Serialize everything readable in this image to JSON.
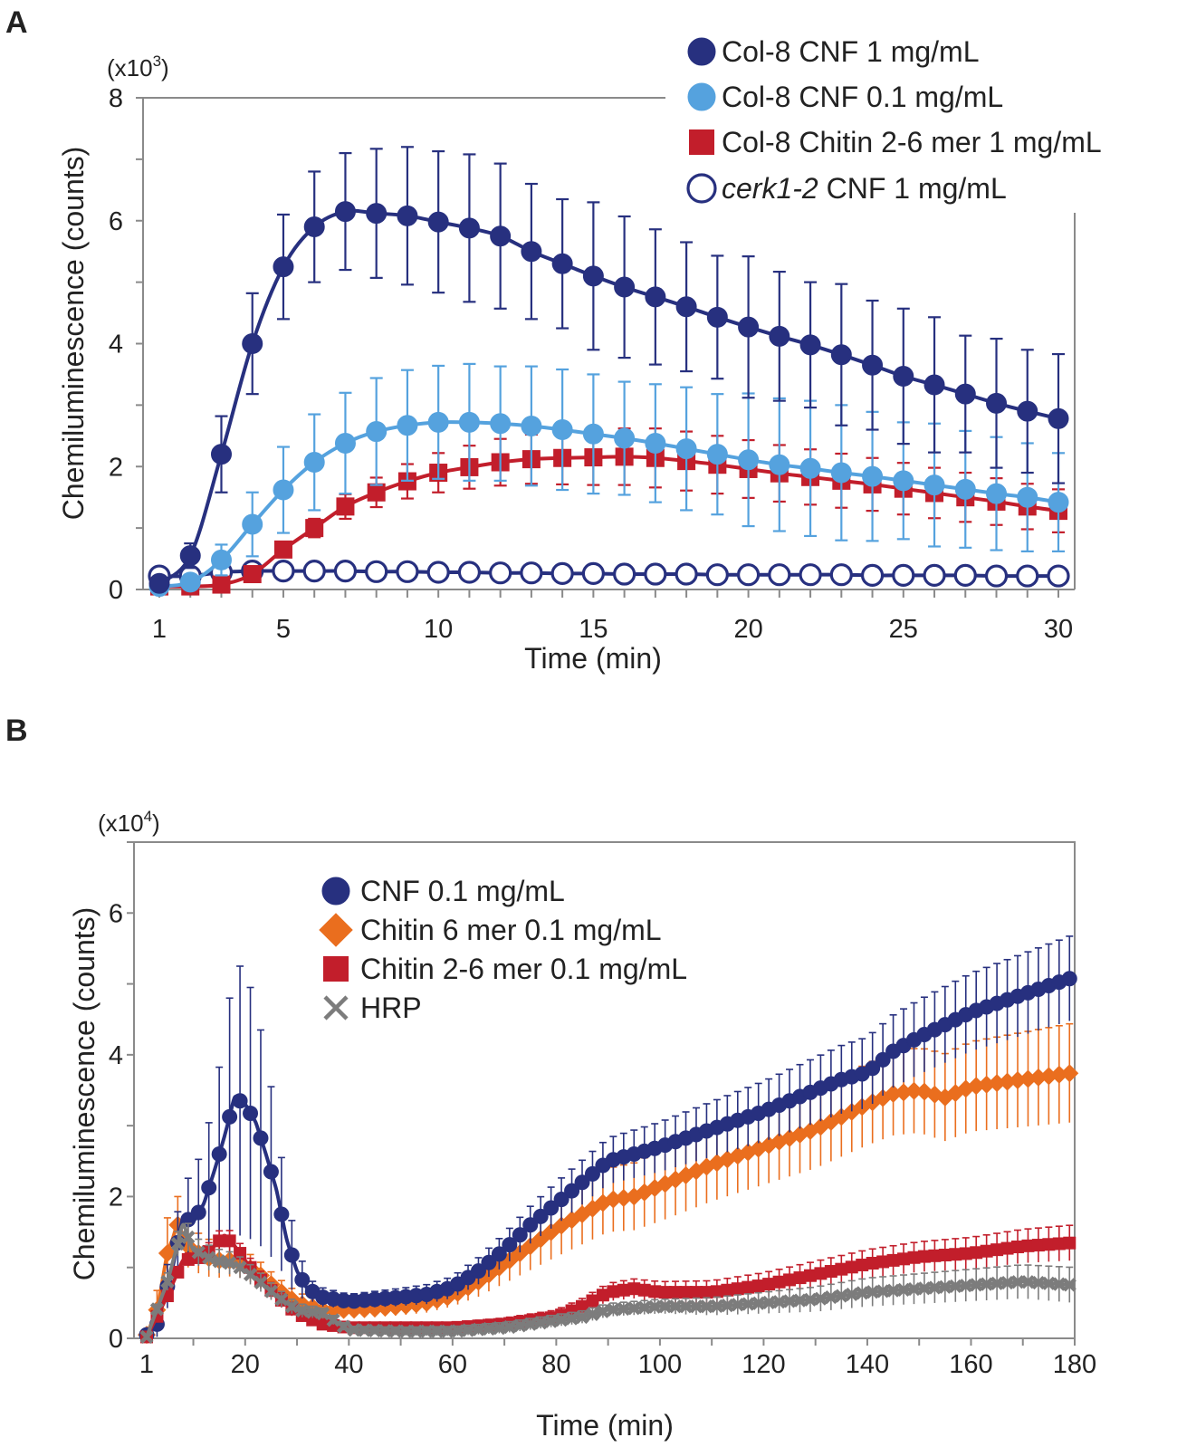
{
  "chart_data": [
    {
      "panel": "A",
      "type": "line",
      "xlabel": "Time (min)",
      "ylabel": "Chemiluminescence (counts)",
      "y_multiplier": {
        "base": "(x10",
        "exp": "3",
        "close": ")"
      },
      "xlim": [
        1,
        30
      ],
      "ylim": [
        0,
        8
      ],
      "xticks": [
        1,
        5,
        10,
        15,
        20,
        25,
        30
      ],
      "yticks": [
        0,
        2,
        4,
        6,
        8
      ],
      "legend_position": "top-right",
      "x": [
        1,
        2,
        3,
        4,
        5,
        6,
        7,
        8,
        9,
        10,
        11,
        12,
        13,
        14,
        15,
        16,
        17,
        18,
        19,
        20,
        21,
        22,
        23,
        24,
        25,
        26,
        27,
        28,
        29,
        30
      ],
      "series": [
        {
          "name": "Col-8 CNF 1 mg/mL",
          "label_parts": [
            {
              "text": "Col-8 CNF 1 mg/mL",
              "italic": false
            }
          ],
          "color": "#27307f",
          "marker": "circle",
          "filled": true,
          "values": [
            0.1,
            0.55,
            2.2,
            4.0,
            5.25,
            5.9,
            6.15,
            6.12,
            6.08,
            5.98,
            5.88,
            5.75,
            5.5,
            5.3,
            5.1,
            4.92,
            4.76,
            4.6,
            4.43,
            4.27,
            4.12,
            3.98,
            3.82,
            3.65,
            3.47,
            3.33,
            3.18,
            3.03,
            2.9,
            2.78
          ],
          "errors": [
            0.05,
            0.2,
            0.62,
            0.82,
            0.85,
            0.9,
            0.95,
            1.05,
            1.12,
            1.15,
            1.2,
            1.18,
            1.1,
            1.05,
            1.2,
            1.15,
            1.1,
            1.05,
            1.0,
            1.15,
            1.05,
            1.02,
            1.15,
            1.05,
            1.1,
            1.1,
            0.95,
            1.05,
            1.0,
            1.05
          ]
        },
        {
          "name": "Col-8 CNF 0.1 mg/mL",
          "label_parts": [
            {
              "text": "Col-8 CNF 0.1 mg/mL",
              "italic": false
            }
          ],
          "color": "#55a2de",
          "marker": "circle",
          "filled": true,
          "values": [
            0.05,
            0.12,
            0.48,
            1.06,
            1.62,
            2.07,
            2.38,
            2.57,
            2.67,
            2.72,
            2.72,
            2.7,
            2.66,
            2.6,
            2.53,
            2.46,
            2.38,
            2.29,
            2.2,
            2.11,
            2.03,
            1.97,
            1.9,
            1.84,
            1.77,
            1.7,
            1.63,
            1.56,
            1.5,
            1.42
          ],
          "errors": [
            0.05,
            0.1,
            0.25,
            0.52,
            0.7,
            0.78,
            0.82,
            0.87,
            0.9,
            0.92,
            0.95,
            0.93,
            0.97,
            0.98,
            0.97,
            0.92,
            0.96,
            1.0,
            0.98,
            1.08,
            1.08,
            1.1,
            1.1,
            1.05,
            0.95,
            1.0,
            0.95,
            0.92,
            0.88,
            0.8
          ]
        },
        {
          "name": "Col-8 Chitin 2-6 mer 1 mg/mL",
          "label_parts": [
            {
              "text": "Col-8 Chitin 2-6 mer 1 mg/mL",
              "italic": false
            }
          ],
          "color": "#c21e2b",
          "marker": "square",
          "filled": true,
          "values": [
            0.05,
            0.05,
            0.08,
            0.25,
            0.65,
            1.0,
            1.35,
            1.58,
            1.76,
            1.9,
            1.99,
            2.07,
            2.12,
            2.14,
            2.15,
            2.16,
            2.14,
            2.09,
            2.03,
            1.96,
            1.89,
            1.83,
            1.77,
            1.71,
            1.64,
            1.57,
            1.5,
            1.43,
            1.35,
            1.28
          ],
          "errors": [
            0.03,
            0.04,
            0.05,
            0.08,
            0.1,
            0.15,
            0.2,
            0.24,
            0.28,
            0.32,
            0.35,
            0.38,
            0.4,
            0.43,
            0.45,
            0.46,
            0.48,
            0.48,
            0.47,
            0.47,
            0.46,
            0.45,
            0.44,
            0.43,
            0.42,
            0.41,
            0.4,
            0.38,
            0.37,
            0.35
          ]
        },
        {
          "name": "cerk1-2 CNF 1 mg/mL",
          "label_parts": [
            {
              "text": "cerk1-2",
              "italic": true
            },
            {
              "text": " CNF 1 mg/mL",
              "italic": false
            }
          ],
          "color": "#27307f",
          "marker": "circle",
          "filled": false,
          "values": [
            0.22,
            0.22,
            0.28,
            0.3,
            0.3,
            0.3,
            0.3,
            0.29,
            0.29,
            0.28,
            0.28,
            0.27,
            0.27,
            0.26,
            0.26,
            0.25,
            0.25,
            0.25,
            0.24,
            0.24,
            0.24,
            0.24,
            0.24,
            0.23,
            0.23,
            0.23,
            0.23,
            0.22,
            0.22,
            0.22
          ],
          "errors": null
        }
      ]
    },
    {
      "panel": "B",
      "type": "line",
      "xlabel": "Time (min)",
      "ylabel": "Chemiluminescence (counts)",
      "y_multiplier": {
        "base": "(x10",
        "exp": "4",
        "close": ")"
      },
      "xlim": [
        1,
        180
      ],
      "ylim": [
        0,
        7
      ],
      "xticks": [
        1,
        20,
        40,
        60,
        80,
        100,
        120,
        140,
        160,
        180
      ],
      "yticks": [
        0,
        2,
        4,
        6
      ],
      "legend_position": "top-left",
      "series": [
        {
          "name": "CNF 0.1 mg/mL",
          "color": "#27307f",
          "marker": "circle",
          "knots": [
            [
              1,
              0.05
            ],
            [
              3,
              0.2
            ],
            [
              6,
              1.0
            ],
            [
              8,
              1.7
            ],
            [
              10,
              1.65
            ],
            [
              12,
              1.9
            ],
            [
              14,
              2.35
            ],
            [
              16,
              2.85
            ],
            [
              18,
              3.4
            ],
            [
              20,
              3.3
            ],
            [
              22,
              3.05
            ],
            [
              24,
              2.6
            ],
            [
              26,
              2.1
            ],
            [
              28,
              1.4
            ],
            [
              30,
              0.95
            ],
            [
              32,
              0.7
            ],
            [
              35,
              0.58
            ],
            [
              40,
              0.52
            ],
            [
              45,
              0.55
            ],
            [
              50,
              0.58
            ],
            [
              55,
              0.62
            ],
            [
              60,
              0.72
            ],
            [
              65,
              0.95
            ],
            [
              70,
              1.25
            ],
            [
              75,
              1.6
            ],
            [
              80,
              1.9
            ],
            [
              85,
              2.2
            ],
            [
              90,
              2.5
            ],
            [
              95,
              2.6
            ],
            [
              100,
              2.7
            ],
            [
              110,
              2.95
            ],
            [
              120,
              3.2
            ],
            [
              130,
              3.5
            ],
            [
              135,
              3.65
            ],
            [
              140,
              3.75
            ],
            [
              145,
              4.05
            ],
            [
              150,
              4.25
            ],
            [
              160,
              4.6
            ],
            [
              170,
              4.85
            ],
            [
              180,
              5.1
            ]
          ],
          "err_knots": [
            [
              1,
              0.05
            ],
            [
              8,
              0.5
            ],
            [
              14,
              1.0
            ],
            [
              18,
              1.9
            ],
            [
              20,
              1.9
            ],
            [
              24,
              1.4
            ],
            [
              28,
              0.6
            ],
            [
              32,
              0.15
            ],
            [
              40,
              0.1
            ],
            [
              60,
              0.15
            ],
            [
              80,
              0.3
            ],
            [
              100,
              0.35
            ],
            [
              140,
              0.5
            ],
            [
              160,
              0.55
            ],
            [
              180,
              0.6
            ]
          ]
        },
        {
          "name": "Chitin 6 mer 0.1 mg/mL",
          "color": "#ea6e1e",
          "marker": "diamond",
          "knots": [
            [
              1,
              0.05
            ],
            [
              3,
              0.4
            ],
            [
              5,
              1.2
            ],
            [
              7,
              1.6
            ],
            [
              9,
              1.3
            ],
            [
              12,
              1.15
            ],
            [
              15,
              1.1
            ],
            [
              18,
              1.1
            ],
            [
              22,
              0.95
            ],
            [
              26,
              0.7
            ],
            [
              30,
              0.5
            ],
            [
              35,
              0.4
            ],
            [
              40,
              0.4
            ],
            [
              45,
              0.42
            ],
            [
              50,
              0.45
            ],
            [
              55,
              0.5
            ],
            [
              60,
              0.6
            ],
            [
              65,
              0.8
            ],
            [
              70,
              1.05
            ],
            [
              75,
              1.3
            ],
            [
              80,
              1.55
            ],
            [
              85,
              1.75
            ],
            [
              90,
              1.95
            ],
            [
              95,
              2.0
            ],
            [
              100,
              2.15
            ],
            [
              110,
              2.45
            ],
            [
              120,
              2.7
            ],
            [
              130,
              2.95
            ],
            [
              140,
              3.3
            ],
            [
              145,
              3.45
            ],
            [
              150,
              3.5
            ],
            [
              155,
              3.4
            ],
            [
              160,
              3.55
            ],
            [
              170,
              3.65
            ],
            [
              180,
              3.75
            ]
          ],
          "err_knots": [
            [
              1,
              0.05
            ],
            [
              5,
              0.5
            ],
            [
              9,
              0.3
            ],
            [
              20,
              0.2
            ],
            [
              40,
              0.1
            ],
            [
              60,
              0.15
            ],
            [
              80,
              0.4
            ],
            [
              100,
              0.5
            ],
            [
              130,
              0.55
            ],
            [
              150,
              0.6
            ],
            [
              180,
              0.7
            ]
          ]
        },
        {
          "name": "Chitin 2-6 mer 0.1 mg/mL",
          "color": "#c21e2b",
          "marker": "square",
          "knots": [
            [
              1,
              0.02
            ],
            [
              5,
              0.6
            ],
            [
              8,
              1.1
            ],
            [
              12,
              1.15
            ],
            [
              16,
              1.45
            ],
            [
              18,
              1.3
            ],
            [
              22,
              0.9
            ],
            [
              26,
              0.6
            ],
            [
              30,
              0.35
            ],
            [
              35,
              0.2
            ],
            [
              40,
              0.15
            ],
            [
              50,
              0.15
            ],
            [
              60,
              0.15
            ],
            [
              70,
              0.2
            ],
            [
              80,
              0.3
            ],
            [
              85,
              0.45
            ],
            [
              90,
              0.65
            ],
            [
              95,
              0.7
            ],
            [
              100,
              0.65
            ],
            [
              110,
              0.65
            ],
            [
              120,
              0.75
            ],
            [
              130,
              0.9
            ],
            [
              140,
              1.05
            ],
            [
              150,
              1.15
            ],
            [
              160,
              1.2
            ],
            [
              170,
              1.3
            ],
            [
              180,
              1.35
            ]
          ],
          "err_knots": [
            [
              1,
              0.02
            ],
            [
              16,
              0.15
            ],
            [
              40,
              0.05
            ],
            [
              80,
              0.1
            ],
            [
              100,
              0.15
            ],
            [
              140,
              0.2
            ],
            [
              180,
              0.25
            ]
          ]
        },
        {
          "name": "HRP",
          "color": "#7c7c7c",
          "marker": "cross",
          "knots": [
            [
              1,
              0.02
            ],
            [
              5,
              0.8
            ],
            [
              8,
              1.6
            ],
            [
              10,
              1.25
            ],
            [
              14,
              1.1
            ],
            [
              18,
              1.05
            ],
            [
              22,
              0.85
            ],
            [
              26,
              0.6
            ],
            [
              30,
              0.4
            ],
            [
              35,
              0.35
            ],
            [
              40,
              0.12
            ],
            [
              50,
              0.1
            ],
            [
              60,
              0.1
            ],
            [
              70,
              0.15
            ],
            [
              80,
              0.25
            ],
            [
              85,
              0.3
            ],
            [
              90,
              0.4
            ],
            [
              100,
              0.45
            ],
            [
              110,
              0.45
            ],
            [
              120,
              0.5
            ],
            [
              130,
              0.55
            ],
            [
              140,
              0.65
            ],
            [
              150,
              0.7
            ],
            [
              160,
              0.75
            ],
            [
              170,
              0.8
            ],
            [
              180,
              0.75
            ]
          ],
          "err_knots": [
            [
              1,
              0.02
            ],
            [
              8,
              0.2
            ],
            [
              40,
              0.05
            ],
            [
              100,
              0.1
            ],
            [
              140,
              0.2
            ],
            [
              180,
              0.25
            ]
          ]
        }
      ]
    }
  ]
}
